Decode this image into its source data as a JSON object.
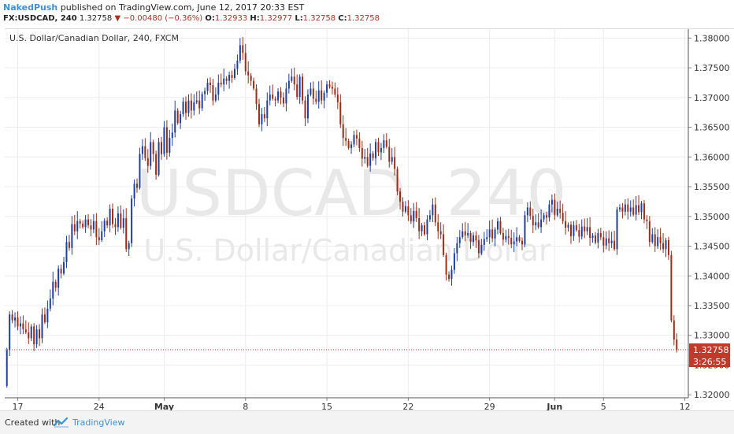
{
  "header": {
    "author": "NakedPush",
    "published": "published on TradingView.com, June 12, 2017 20:33 EST",
    "symbol": "FX:USDCAD, 240",
    "last": "1.32758",
    "change": "−0.00480 (−0.36%)",
    "open_label": "O:",
    "open": "1.32933",
    "high_label": "H:",
    "high": "1.32977",
    "low_label": "L:",
    "low": "1.32758",
    "close_label": "C:",
    "close": "1.32758"
  },
  "footer": {
    "created_label": "Created with",
    "brand": "TradingView"
  },
  "colors": {
    "up": "#1f3f9e",
    "down": "#9b2d18",
    "price_line": "#c0392b",
    "accent": "#3d8fd6"
  },
  "chart_data": {
    "type": "candlestick",
    "title": "U.S. Dollar/Canadian Dollar, 240, FXCM",
    "watermark_main": "USDCAD, 240",
    "watermark_sub": "U.S. Dollar/Canadian Dollar",
    "ylim": [
      1.3195,
      1.3815
    ],
    "y_ticks": [
      "1.32000",
      "1.32500",
      "1.33000",
      "1.33500",
      "1.34000",
      "1.34500",
      "1.35000",
      "1.35500",
      "1.36000",
      "1.36500",
      "1.37000",
      "1.37500",
      "1.38000"
    ],
    "y_tick_values": [
      1.32,
      1.325,
      1.33,
      1.335,
      1.34,
      1.345,
      1.35,
      1.355,
      1.36,
      1.365,
      1.37,
      1.375,
      1.38
    ],
    "x_ticks": [
      {
        "label": "17",
        "index": 4
      },
      {
        "label": "24",
        "index": 34
      },
      {
        "label": "May",
        "index": 58
      },
      {
        "label": "8",
        "index": 88
      },
      {
        "label": "15",
        "index": 118
      },
      {
        "label": "22",
        "index": 148
      },
      {
        "label": "29",
        "index": 178
      },
      {
        "label": "Jun",
        "index": 202
      },
      {
        "label": "5",
        "index": 220
      },
      {
        "label": "12",
        "index": 250
      }
    ],
    "grid": true,
    "last_price_label": "1.32758",
    "countdown_label": "3:26:55",
    "last_price": 1.32758,
    "closes": [
      1.3275,
      1.3335,
      1.3325,
      1.333,
      1.3315,
      1.332,
      1.331,
      1.3305,
      1.3295,
      1.3315,
      1.3285,
      1.331,
      1.3295,
      1.3335,
      1.3322,
      1.3345,
      1.3362,
      1.339,
      1.338,
      1.3412,
      1.3404,
      1.3423,
      1.3457,
      1.3447,
      1.3487,
      1.3475,
      1.3492,
      1.3488,
      1.3482,
      1.3495,
      1.3485,
      1.3478,
      1.3492,
      1.3465,
      1.346,
      1.3475,
      1.3493,
      1.3485,
      1.3513,
      1.3487,
      1.3482,
      1.3505,
      1.3481,
      1.3497,
      1.3445,
      1.3455,
      1.353,
      1.3555,
      1.3548,
      1.3605,
      1.3618,
      1.3598,
      1.3585,
      1.3625,
      1.3605,
      1.357,
      1.3625,
      1.3605,
      1.365,
      1.3607,
      1.3632,
      1.3641,
      1.3678,
      1.3657,
      1.3672,
      1.3693,
      1.3674,
      1.3695,
      1.3678,
      1.3692,
      1.3695,
      1.3682,
      1.3706,
      1.3711,
      1.3725,
      1.3721,
      1.3695,
      1.3705,
      1.3725,
      1.3722,
      1.3732,
      1.3728,
      1.3738,
      1.3733,
      1.3748,
      1.3762,
      1.3788,
      1.3775,
      1.3744,
      1.3737,
      1.3728,
      1.3715,
      1.3689,
      1.3655,
      1.3672,
      1.3665,
      1.3695,
      1.3705,
      1.3698,
      1.3695,
      1.371,
      1.37,
      1.369,
      1.3715,
      1.3728,
      1.3735,
      1.3722,
      1.3701,
      1.3735,
      1.3695,
      1.3665,
      1.3705,
      1.3715,
      1.3698,
      1.3693,
      1.3712,
      1.3695,
      1.3708,
      1.3722,
      1.3718,
      1.3715,
      1.3705,
      1.3692,
      1.3655,
      1.3632,
      1.3627,
      1.3615,
      1.3621,
      1.3637,
      1.3631,
      1.3615,
      1.3597,
      1.36,
      1.3585,
      1.3606,
      1.3598,
      1.3625,
      1.3608,
      1.3615,
      1.3628,
      1.3617,
      1.3592,
      1.36,
      1.358,
      1.3542,
      1.3525,
      1.3508,
      1.3517,
      1.3502,
      1.3492,
      1.3509,
      1.3497,
      1.3475,
      1.3485,
      1.347,
      1.3495,
      1.3502,
      1.352,
      1.349,
      1.3475,
      1.347,
      1.3435,
      1.3402,
      1.3395,
      1.341,
      1.3438,
      1.3455,
      1.3465,
      1.3475,
      1.3468,
      1.3472,
      1.3457,
      1.3468,
      1.346,
      1.3438,
      1.3452,
      1.3462,
      1.3465,
      1.3478,
      1.3463,
      1.3478,
      1.3492,
      1.3472,
      1.3461,
      1.3467,
      1.3464,
      1.3453,
      1.3458,
      1.3465,
      1.3459,
      1.3453,
      1.3502,
      1.3515,
      1.3501,
      1.3485,
      1.349,
      1.3482,
      1.3495,
      1.3502,
      1.3498,
      1.352,
      1.3528,
      1.3502,
      1.3513,
      1.3506,
      1.3492,
      1.3481,
      1.3486,
      1.3467,
      1.3485,
      1.3477,
      1.3466,
      1.3483,
      1.3475,
      1.3482,
      1.3464,
      1.3468,
      1.3456,
      1.3472,
      1.3465,
      1.3451,
      1.3463,
      1.3455,
      1.3459,
      1.3445,
      1.3512,
      1.3515,
      1.3508,
      1.352,
      1.3508,
      1.3515,
      1.3503,
      1.3519,
      1.3507,
      1.3522,
      1.3495,
      1.3492,
      1.3457,
      1.347,
      1.345,
      1.3465,
      1.3455,
      1.3445,
      1.346,
      1.3435,
      1.3325,
      1.3293,
      1.32758
    ]
  }
}
